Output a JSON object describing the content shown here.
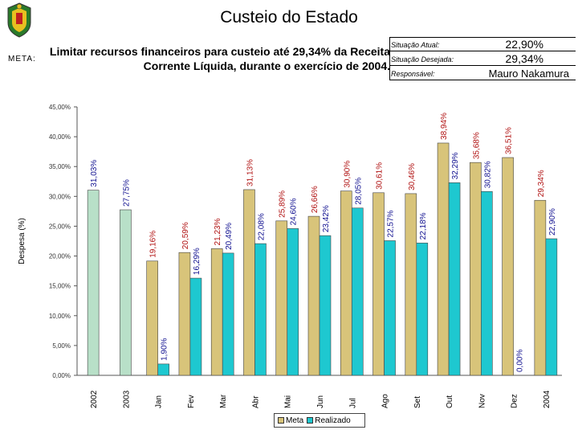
{
  "header": {
    "title": "Custeio do Estado",
    "meta_label": "META:",
    "goal_line1": "Limitar recursos financeiros para custeio até 29,34% da Receita",
    "goal_line2": "Corrente Líquida, durante o exercício de 2004."
  },
  "status": {
    "atual_label": "Situação Atual:",
    "atual_value": "22,90%",
    "desejada_label": "Situação Desejada:",
    "desejada_value": "29,34%",
    "responsavel_label": "Responsável:",
    "responsavel_value": "Mauro Nakamura"
  },
  "colors": {
    "meta": "#d8c47a",
    "realizado": "#1ec8d0",
    "annual": "#b8e0c8",
    "label_meta": "#b01010",
    "label_real": "#101090"
  },
  "chart_data": {
    "type": "bar",
    "title": "",
    "xlabel": "",
    "ylabel": "Despesa (%)",
    "ylim": [
      0,
      45
    ],
    "yticks": [
      "0,00%",
      "5,00%",
      "10,00%",
      "15,00%",
      "20,00%",
      "25,00%",
      "30,00%",
      "35,00%",
      "40,00%",
      "45,00%"
    ],
    "categories": [
      "2002",
      "2003",
      "Jan",
      "Fev",
      "Mar",
      "Abr",
      "Mai",
      "Jun",
      "Jul",
      "Ago",
      "Set",
      "Out",
      "Nov",
      "Dez",
      "2004"
    ],
    "series": [
      {
        "name": "Meta",
        "values": [
          null,
          null,
          19.16,
          20.59,
          21.23,
          31.13,
          25.89,
          26.66,
          30.9,
          30.61,
          30.46,
          38.94,
          35.68,
          36.51,
          29.34
        ],
        "labels": [
          "",
          "",
          "19,16%",
          "20,59%",
          "21,23%",
          "31,13%",
          "25,89%",
          "26,66%",
          "30,90%",
          "30,61%",
          "30,46%",
          "38,94%",
          "35,68%",
          "36,51%",
          "29,34%"
        ]
      },
      {
        "name": "Realizado",
        "values": [
          31.03,
          27.75,
          1.9,
          16.29,
          20.49,
          22.08,
          24.6,
          23.42,
          28.05,
          22.57,
          22.18,
          32.29,
          30.82,
          0.0,
          22.9
        ],
        "labels": [
          "31,03%",
          "27,75%",
          "1,90%",
          "16,29%",
          "20,49%",
          "22,08%",
          "24,60%",
          "23,42%",
          "28,05%",
          "22,57%",
          "22,18%",
          "32,29%",
          "30,82%",
          "0,00%",
          "22,90%"
        ]
      }
    ],
    "legend": [
      "Meta",
      "Realizado"
    ],
    "legend_position": "bottom"
  }
}
